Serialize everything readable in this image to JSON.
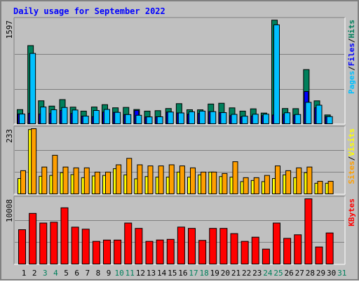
{
  "chart_data": [
    {
      "type": "bar",
      "title": "Daily usage for September 2022",
      "ymax_label": "1597",
      "ylim": [
        0,
        1597
      ],
      "categories": [
        "1",
        "2",
        "3",
        "4",
        "5",
        "6",
        "7",
        "8",
        "9",
        "10",
        "11",
        "12",
        "13",
        "14",
        "15",
        "16",
        "17",
        "18",
        "19",
        "20",
        "21",
        "22",
        "23",
        "24",
        "25",
        "26",
        "27",
        "28",
        "29",
        "30",
        "31"
      ],
      "weekend_days": [
        "3",
        "4",
        "10",
        "11",
        "17",
        "18",
        "24",
        "25",
        "31"
      ],
      "legend": [
        "Pages",
        "Files",
        "Hits"
      ],
      "series": [
        {
          "name": "Hits",
          "color": "#00805C",
          "values": [
            218,
            1203,
            354,
            272,
            372,
            256,
            195,
            258,
            294,
            246,
            252,
            220,
            195,
            202,
            235,
            310,
            216,
            215,
            304,
            316,
            245,
            195,
            230,
            165,
            1595,
            235,
            233,
            834,
            353,
            136,
            0
          ]
        },
        {
          "name": "Files",
          "color": "#00C0FF",
          "values": [
            150,
            1083,
            258,
            216,
            251,
            212,
            118,
            205,
            221,
            176,
            142,
            131,
            106,
            108,
            181,
            167,
            185,
            195,
            187,
            172,
            145,
            117,
            147,
            148,
            1523,
            170,
            143,
            330,
            286,
            111,
            0
          ]
        },
        {
          "name": "Pages",
          "color": "#0000FF",
          "values": [
            150,
            160,
            150,
            160,
            205,
            160,
            118,
            110,
            180,
            176,
            142,
            204,
            106,
            108,
            180,
            167,
            147,
            160,
            187,
            172,
            125,
            107,
            120,
            125,
            135,
            148,
            135,
            496,
            247,
            111,
            0
          ]
        }
      ]
    },
    {
      "type": "bar",
      "ymax_label": "233",
      "ylim": [
        0,
        233
      ],
      "categories": [
        "1",
        "2",
        "3",
        "4",
        "5",
        "6",
        "7",
        "8",
        "9",
        "10",
        "11",
        "12",
        "13",
        "14",
        "15",
        "16",
        "17",
        "18",
        "19",
        "20",
        "21",
        "22",
        "23",
        "24",
        "25",
        "26",
        "27",
        "28",
        "29",
        "30",
        "31"
      ],
      "legend": [
        "Sites",
        "Visits"
      ],
      "series": [
        {
          "name": "Visits",
          "color": "#FFFF00",
          "values": [
            55,
            230,
            63,
            66,
            76,
            69,
            58,
            64,
            66,
            90,
            68,
            54,
            62,
            60,
            60,
            78,
            60,
            68,
            78,
            62,
            60,
            44,
            48,
            44,
            55,
            68,
            58,
            76,
            38,
            38,
            0
          ]
        },
        {
          "name": "Sites",
          "color": "#FF9F00",
          "values": [
            83,
            233,
            96,
            138,
            96,
            93,
            93,
            78,
            78,
            104,
            127,
            104,
            100,
            100,
            104,
            100,
            93,
            78,
            78,
            73,
            115,
            58,
            58,
            66,
            100,
            83,
            93,
            96,
            45,
            45,
            0
          ]
        }
      ]
    },
    {
      "type": "bar",
      "ymax_label": "10008",
      "ylim": [
        0,
        10008
      ],
      "categories": [
        "1",
        "2",
        "3",
        "4",
        "5",
        "6",
        "7",
        "8",
        "9",
        "10",
        "11",
        "12",
        "13",
        "14",
        "15",
        "16",
        "17",
        "18",
        "19",
        "20",
        "21",
        "22",
        "23",
        "24",
        "25",
        "26",
        "27",
        "28",
        "29",
        "30",
        "31"
      ],
      "legend": [
        "KBytes"
      ],
      "series": [
        {
          "name": "KBytes",
          "color": "#FF0000",
          "values": [
            5270,
            7770,
            6290,
            6420,
            8630,
            5660,
            5350,
            3480,
            3680,
            3680,
            6290,
            5470,
            3480,
            3690,
            3790,
            5670,
            5470,
            3630,
            5470,
            5470,
            4670,
            3480,
            4120,
            2290,
            6290,
            3940,
            4490,
            10008,
            2620,
            4770,
            0
          ]
        }
      ]
    }
  ]
}
